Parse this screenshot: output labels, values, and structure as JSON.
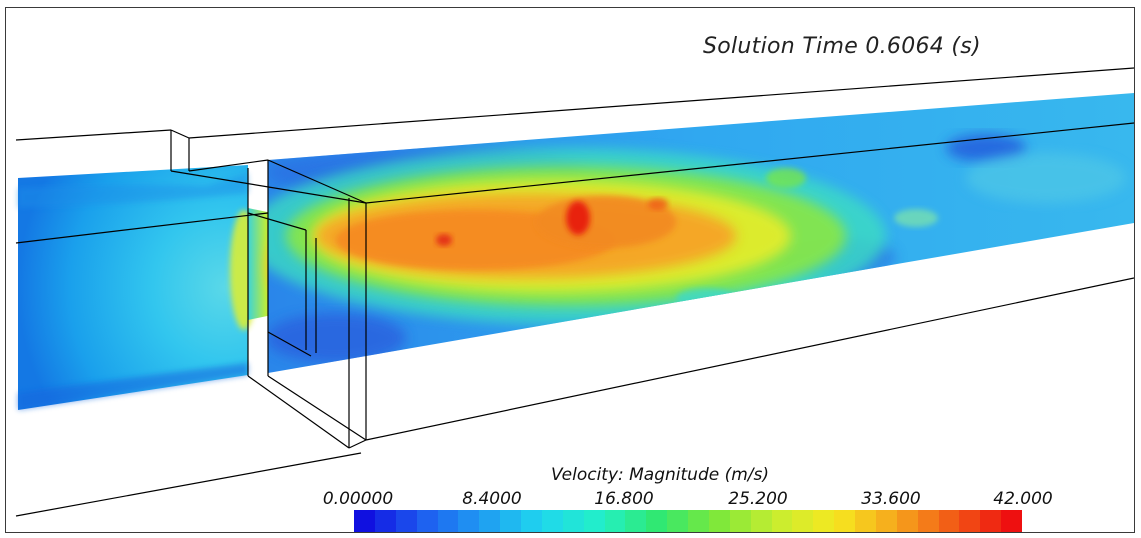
{
  "solution_time": {
    "label": "Solution Time 0.6064 (s)",
    "value_s": 0.6064
  },
  "legend": {
    "title": "Velocity: Magnitude (m/s)",
    "ticks": [
      "0.00000",
      "8.4000",
      "16.800",
      "25.200",
      "33.600",
      "42.000"
    ],
    "min": 0.0,
    "max": 42.0,
    "colormap": [
      "#1010e0",
      "#1e5ef0",
      "#1f9cf2",
      "#1fd6ee",
      "#22f0c8",
      "#30e870",
      "#7ee83a",
      "#c8ee30",
      "#f6e820",
      "#f6a81c",
      "#f25a16",
      "#ee1010"
    ],
    "band_count": 32
  },
  "scene": {
    "description_colors": {
      "inlet_flow": "#2cb8f0",
      "jet_core": "#f5922a",
      "outlet_flow": "#35b6ee",
      "wireframe": "#000000"
    }
  }
}
